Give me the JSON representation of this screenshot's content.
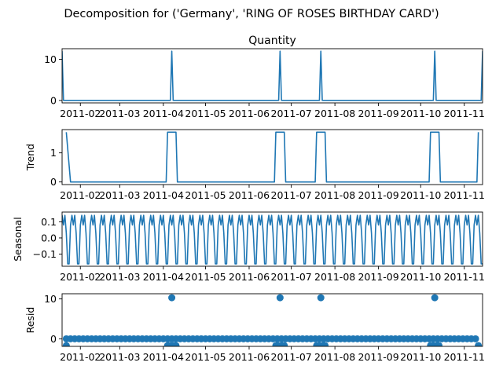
{
  "figure": {
    "suptitle": "Decomposition for ('Germany', 'RING OF ROSES BIRTHDAY CARD')"
  },
  "colors": {
    "series": "#1f77b4",
    "axes": "#000000",
    "background": "#ffffff"
  },
  "chart_data": [
    {
      "type": "line",
      "title": "Quantity",
      "xlabel": "",
      "ylabel": "",
      "xlim": [
        "2011-01-19",
        "2011-11-14"
      ],
      "ylim": [
        -0.6,
        12.6
      ],
      "yticks": [
        0,
        10
      ],
      "grid": false,
      "x_tick_labels": [
        "2011-02",
        "2011-03",
        "2011-04",
        "2011-05",
        "2011-06",
        "2011-07",
        "2011-08",
        "2011-09",
        "2011-10",
        "2011-11"
      ],
      "series": [
        {
          "values": [
            {
              "x": "2011-01-19",
              "y": 12
            },
            {
              "x": "2011-01-20",
              "y": 0
            },
            {
              "x": "2011-04-06",
              "y": 0
            },
            {
              "x": "2011-04-07",
              "y": 12
            },
            {
              "x": "2011-04-08",
              "y": 0
            },
            {
              "x": "2011-06-22",
              "y": 0
            },
            {
              "x": "2011-06-23",
              "y": 12
            },
            {
              "x": "2011-06-24",
              "y": 0
            },
            {
              "x": "2011-07-21",
              "y": 0
            },
            {
              "x": "2011-07-22",
              "y": 12
            },
            {
              "x": "2011-07-23",
              "y": 0
            },
            {
              "x": "2011-10-10",
              "y": 0
            },
            {
              "x": "2011-10-11",
              "y": 12
            },
            {
              "x": "2011-10-12",
              "y": 0
            },
            {
              "x": "2011-11-13",
              "y": 0
            },
            {
              "x": "2011-11-14",
              "y": 12
            }
          ]
        }
      ]
    },
    {
      "type": "line",
      "title": "",
      "xlabel": "",
      "ylabel": "Trend",
      "xlim": [
        "2011-01-19",
        "2011-11-14"
      ],
      "ylim": [
        -0.09,
        1.8
      ],
      "yticks": [
        0,
        1
      ],
      "grid": false,
      "x_tick_labels": [
        "2011-02",
        "2011-03",
        "2011-04",
        "2011-05",
        "2011-06",
        "2011-07",
        "2011-08",
        "2011-09",
        "2011-10",
        "2011-11"
      ],
      "series": [
        {
          "values": [
            {
              "x": "2011-01-22",
              "y": 1.71
            },
            {
              "x": "2011-01-25",
              "y": 0
            },
            {
              "x": "2011-04-03",
              "y": 0
            },
            {
              "x": "2011-04-04",
              "y": 1.71
            },
            {
              "x": "2011-04-10",
              "y": 1.71
            },
            {
              "x": "2011-04-11",
              "y": 0
            },
            {
              "x": "2011-06-19",
              "y": 0
            },
            {
              "x": "2011-06-20",
              "y": 1.71
            },
            {
              "x": "2011-06-26",
              "y": 1.71
            },
            {
              "x": "2011-06-27",
              "y": 0
            },
            {
              "x": "2011-07-18",
              "y": 0
            },
            {
              "x": "2011-07-19",
              "y": 1.71
            },
            {
              "x": "2011-07-25",
              "y": 1.71
            },
            {
              "x": "2011-07-26",
              "y": 0
            },
            {
              "x": "2011-10-07",
              "y": 0
            },
            {
              "x": "2011-10-08",
              "y": 1.71
            },
            {
              "x": "2011-10-14",
              "y": 1.71
            },
            {
              "x": "2011-10-15",
              "y": 0
            },
            {
              "x": "2011-11-10",
              "y": 0
            },
            {
              "x": "2011-11-11",
              "y": 1.71
            }
          ]
        }
      ]
    },
    {
      "type": "line",
      "title": "",
      "xlabel": "",
      "ylabel": "Seasonal",
      "xlim": [
        "2011-01-19",
        "2011-11-14"
      ],
      "ylim": [
        -0.175,
        0.16
      ],
      "yticks": [
        -0.1,
        0.0,
        0.1
      ],
      "y_tick_labels": [
        "−0.1",
        "0.0",
        "0.1"
      ],
      "grid": false,
      "x_tick_labels": [
        "2011-02",
        "2011-03",
        "2011-04",
        "2011-05",
        "2011-06",
        "2011-07",
        "2011-08",
        "2011-09",
        "2011-10",
        "2011-11"
      ],
      "period_days": 7,
      "weekly_pattern": [
        0.14,
        0.08,
        0.14,
        0.03,
        -0.16,
        -0.16,
        0.08
      ],
      "start": "2011-01-19",
      "end": "2011-11-14"
    },
    {
      "type": "scatter",
      "title": "",
      "xlabel": "",
      "ylabel": "Resid",
      "xlim": [
        "2011-01-19",
        "2011-11-14"
      ],
      "ylim": [
        -1.9,
        11.3
      ],
      "yticks": [
        0,
        10
      ],
      "grid": false,
      "x_tick_labels": [
        "2011-02",
        "2011-03",
        "2011-04",
        "2011-05",
        "2011-06",
        "2011-07",
        "2011-08",
        "2011-09",
        "2011-10",
        "2011-11"
      ],
      "baseline_value": 0,
      "spikes": [
        {
          "x": "2011-04-07",
          "y": 10.3
        },
        {
          "x": "2011-06-23",
          "y": 10.3
        },
        {
          "x": "2011-07-22",
          "y": 10.3
        },
        {
          "x": "2011-10-11",
          "y": 10.3
        }
      ],
      "dips": [
        {
          "x": "2011-01-22",
          "y": -1.7
        },
        {
          "x": "2011-04-04",
          "y": -1.7
        },
        {
          "x": "2011-04-05",
          "y": -1.7
        },
        {
          "x": "2011-04-06",
          "y": -1.7
        },
        {
          "x": "2011-04-08",
          "y": -1.7
        },
        {
          "x": "2011-04-09",
          "y": -1.7
        },
        {
          "x": "2011-04-10",
          "y": -1.7
        },
        {
          "x": "2011-06-20",
          "y": -1.7
        },
        {
          "x": "2011-06-21",
          "y": -1.7
        },
        {
          "x": "2011-06-22",
          "y": -1.7
        },
        {
          "x": "2011-06-24",
          "y": -1.7
        },
        {
          "x": "2011-06-25",
          "y": -1.7
        },
        {
          "x": "2011-06-26",
          "y": -1.7
        },
        {
          "x": "2011-07-19",
          "y": -1.7
        },
        {
          "x": "2011-07-20",
          "y": -1.7
        },
        {
          "x": "2011-07-21",
          "y": -1.7
        },
        {
          "x": "2011-07-23",
          "y": -1.7
        },
        {
          "x": "2011-07-24",
          "y": -1.7
        },
        {
          "x": "2011-07-25",
          "y": -1.7
        },
        {
          "x": "2011-10-08",
          "y": -1.7
        },
        {
          "x": "2011-10-09",
          "y": -1.7
        },
        {
          "x": "2011-10-10",
          "y": -1.7
        },
        {
          "x": "2011-10-12",
          "y": -1.7
        },
        {
          "x": "2011-10-13",
          "y": -1.7
        },
        {
          "x": "2011-10-14",
          "y": -1.7
        },
        {
          "x": "2011-11-11",
          "y": -1.7
        }
      ],
      "regular_interval_days": 3,
      "start": "2011-01-22",
      "end": "2011-11-11"
    }
  ]
}
